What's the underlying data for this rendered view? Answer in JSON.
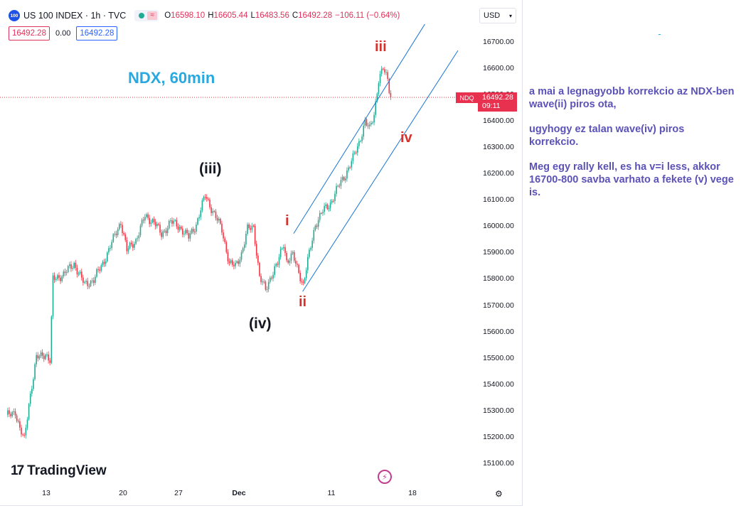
{
  "header": {
    "symbol_badge": "100",
    "title": "US 100 INDEX · 1h · TVC",
    "ohlc": [
      {
        "k": "O",
        "v": "16598.10"
      },
      {
        "k": "H",
        "v": "16605.44"
      },
      {
        "k": "L",
        "v": "16483.56"
      },
      {
        "k": "C",
        "v": "16492.28"
      }
    ],
    "change": "−106.11 (−0.64%)",
    "sell_price": "16492.28",
    "spread": "0.00",
    "buy_price": "16492.28",
    "currency": "USD"
  },
  "chart_data": {
    "type": "candlestick",
    "interval": "1h",
    "y_range": [
      15100,
      16750
    ],
    "y_ticks": [
      "16700.00",
      "16600.00",
      "16500.00",
      "16400.00",
      "16300.00",
      "16200.00",
      "16100.00",
      "16000.00",
      "15900.00",
      "15800.00",
      "15700.00",
      "15600.00",
      "15500.00",
      "15400.00",
      "15300.00",
      "15200.00",
      "15100.00"
    ],
    "x_ticks": [
      {
        "label": "13",
        "bold": false
      },
      {
        "label": "20",
        "bold": false
      },
      {
        "label": "27",
        "bold": false
      },
      {
        "label": "Dec",
        "bold": true
      },
      {
        "label": "11",
        "bold": false
      },
      {
        "label": "18",
        "bold": false
      }
    ],
    "last_price": {
      "symbol": "NDQ",
      "value": "16492.28",
      "countdown": "09:11"
    },
    "up_color": "#22ab94",
    "down_color": "#f23645",
    "anchors": [
      [
        0,
        15280
      ],
      [
        6,
        15300
      ],
      [
        9,
        15230
      ],
      [
        12,
        15190
      ],
      [
        15,
        15330
      ],
      [
        20,
        15500
      ],
      [
        26,
        15520
      ],
      [
        29,
        15490
      ],
      [
        31,
        15800
      ],
      [
        38,
        15820
      ],
      [
        45,
        15860
      ],
      [
        52,
        15780
      ],
      [
        58,
        15800
      ],
      [
        64,
        15860
      ],
      [
        70,
        15940
      ],
      [
        76,
        16020
      ],
      [
        80,
        15910
      ],
      [
        86,
        15950
      ],
      [
        92,
        16040
      ],
      [
        98,
        16020
      ],
      [
        103,
        15970
      ],
      [
        109,
        16020
      ],
      [
        115,
        16000
      ],
      [
        121,
        15960
      ],
      [
        126,
        16010
      ],
      [
        132,
        16120
      ],
      [
        137,
        16060
      ],
      [
        143,
        15990
      ],
      [
        148,
        15860
      ],
      [
        152,
        15850
      ],
      [
        156,
        15900
      ],
      [
        160,
        15990
      ],
      [
        164,
        16000
      ],
      [
        168,
        15810
      ],
      [
        172,
        15760
      ],
      [
        176,
        15820
      ],
      [
        180,
        15860
      ],
      [
        184,
        15940
      ],
      [
        186,
        15870
      ],
      [
        190,
        15890
      ],
      [
        194,
        15830
      ],
      [
        197,
        15780
      ],
      [
        200,
        15870
      ],
      [
        205,
        16010
      ],
      [
        210,
        16060
      ],
      [
        215,
        16090
      ],
      [
        220,
        16150
      ],
      [
        225,
        16200
      ],
      [
        230,
        16260
      ],
      [
        234,
        16320
      ],
      [
        238,
        16400
      ],
      [
        241,
        16370
      ],
      [
        244,
        16430
      ],
      [
        247,
        16560
      ],
      [
        250,
        16600
      ],
      [
        253,
        16560
      ],
      [
        255,
        16492
      ]
    ],
    "channel_lines": [
      {
        "from": [
          191,
          15975
        ],
        "to": [
          278,
          16770
        ]
      },
      {
        "from": [
          197,
          15755
        ],
        "to": [
          300,
          16670
        ]
      }
    ],
    "wave_labels": [
      {
        "text": "NDX,  60min",
        "style": "title"
      },
      {
        "text": "(iii)",
        "style": "black"
      },
      {
        "text": "(iv)",
        "style": "black"
      },
      {
        "text": "i",
        "style": "red"
      },
      {
        "text": "ii",
        "style": "red"
      },
      {
        "text": "iii",
        "style": "red"
      },
      {
        "text": "iv",
        "style": "red"
      }
    ]
  },
  "brand": {
    "logo_mark": "17",
    "name": "TradingView"
  },
  "side_note": [
    "a mai a legnagyobb korrekcio az NDX-ben wave(ii) piros ota,",
    "ugyhogy ez talan wave(iv) piros korrekcio.",
    "Meg egy rally kell, es ha v=i less, akkor  16700-800 savba varhato a fekete (v) vege is."
  ]
}
